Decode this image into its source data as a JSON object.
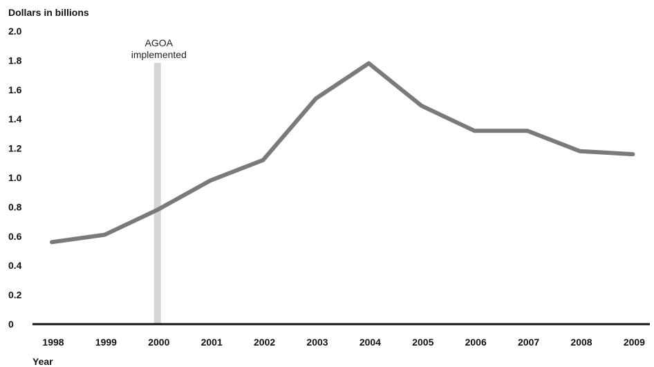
{
  "chart_data": {
    "type": "line",
    "ylabel": "Dollars in billions",
    "xlabel": "Year",
    "ylim": [
      0,
      2.0
    ],
    "y_ticks": [
      "0",
      "0.2",
      "0.4",
      "0.6",
      "0.8",
      "1.0",
      "1.2",
      "1.4",
      "1.6",
      "1.8",
      "2.0"
    ],
    "grid": false,
    "categories": [
      "1998",
      "1999",
      "2000",
      "2001",
      "2002",
      "2003",
      "2004",
      "2005",
      "2006",
      "2007",
      "2008",
      "2009"
    ],
    "series": [
      {
        "values": [
          0.56,
          0.61,
          0.78,
          0.98,
          1.12,
          1.54,
          1.78,
          1.49,
          1.32,
          1.32,
          1.18,
          1.16
        ]
      }
    ],
    "annotation": {
      "category": "2000",
      "line1": "AGOA",
      "line2": "implemented"
    },
    "colors": {
      "line": "#7a7a7c",
      "marker_band": "#d4d5d5",
      "axis": "#111111"
    }
  }
}
